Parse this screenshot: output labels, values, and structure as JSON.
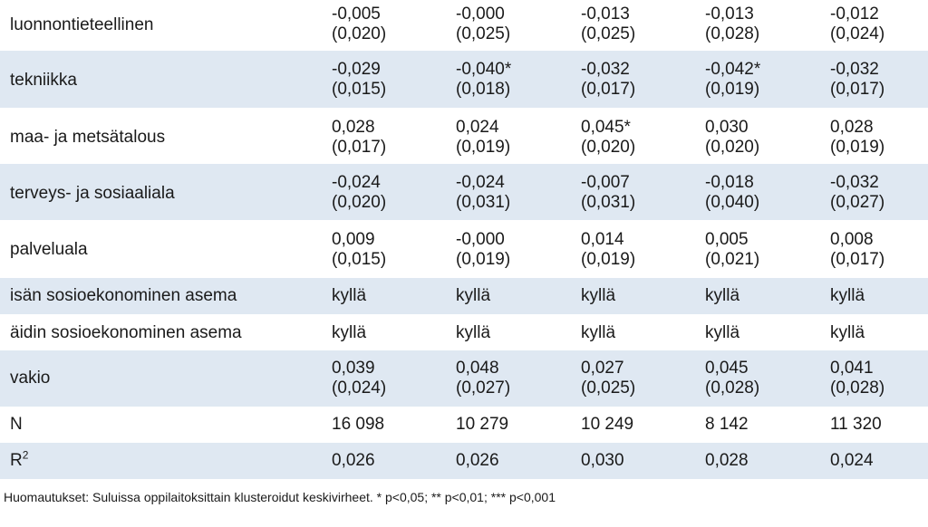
{
  "table": {
    "rows": [
      {
        "label": "luonnontieteellinen",
        "shaded": false,
        "type": "coef",
        "cells": [
          {
            "est": "-0,005",
            "se": "(0,020)"
          },
          {
            "est": "-0,000",
            "se": "(0,025)"
          },
          {
            "est": "-0,013",
            "se": "(0,025)"
          },
          {
            "est": "-0,013",
            "se": "(0,028)"
          },
          {
            "est": "-0,012",
            "se": "(0,024)"
          }
        ]
      },
      {
        "label": "tekniikka",
        "shaded": true,
        "type": "coef",
        "cells": [
          {
            "est": "-0,029",
            "se": "(0,015)"
          },
          {
            "est": "-0,040*",
            "se": "(0,018)"
          },
          {
            "est": "-0,032",
            "se": "(0,017)"
          },
          {
            "est": "-0,042*",
            "se": "(0,019)"
          },
          {
            "est": "-0,032",
            "se": "(0,017)"
          }
        ]
      },
      {
        "label": "maa- ja metsätalous",
        "shaded": false,
        "type": "coef",
        "cells": [
          {
            "est": "0,028",
            "se": "(0,017)"
          },
          {
            "est": "0,024",
            "se": "(0,019)"
          },
          {
            "est": "0,045*",
            "se": "(0,020)"
          },
          {
            "est": "0,030",
            "se": "(0,020)"
          },
          {
            "est": "0,028",
            "se": "(0,019)"
          }
        ]
      },
      {
        "label": "terveys- ja sosiaaliala",
        "shaded": true,
        "type": "coef",
        "cells": [
          {
            "est": "-0,024",
            "se": "(0,020)"
          },
          {
            "est": "-0,024",
            "se": "(0,031)"
          },
          {
            "est": "-0,007",
            "se": "(0,031)"
          },
          {
            "est": "-0,018",
            "se": "(0,040)"
          },
          {
            "est": "-0,032",
            "se": "(0,027)"
          }
        ]
      },
      {
        "label": "palveluala",
        "shaded": false,
        "type": "coef",
        "cells": [
          {
            "est": "0,009",
            "se": "(0,015)"
          },
          {
            "est": "-0,000",
            "se": "(0,019)"
          },
          {
            "est": "0,014",
            "se": "(0,019)"
          },
          {
            "est": "0,005",
            "se": "(0,021)"
          },
          {
            "est": "0,008",
            "se": "(0,017)"
          }
        ]
      },
      {
        "label": "isän sosioekonominen asema",
        "shaded": true,
        "type": "single",
        "cells": [
          "kyllä",
          "kyllä",
          "kyllä",
          "kyllä",
          "kyllä"
        ]
      },
      {
        "label": "äidin sosioekonominen asema",
        "shaded": false,
        "type": "single",
        "cells": [
          "kyllä",
          "kyllä",
          "kyllä",
          "kyllä",
          "kyllä"
        ]
      },
      {
        "label": "vakio",
        "shaded": true,
        "type": "coef",
        "cells": [
          {
            "est": "0,039",
            "se": "(0,024)"
          },
          {
            "est": "0,048",
            "se": "(0,027)"
          },
          {
            "est": "0,027",
            "se": "(0,025)"
          },
          {
            "est": "0,045",
            "se": "(0,028)"
          },
          {
            "est": "0,041",
            "se": "(0,028)"
          }
        ]
      },
      {
        "label": "N",
        "shaded": false,
        "type": "single",
        "cells": [
          "16 098",
          "10 279",
          "10 249",
          "8 142",
          "11 320"
        ]
      },
      {
        "label": "R",
        "label_sup": "2",
        "shaded": true,
        "type": "single",
        "cells": [
          "0,026",
          "0,026",
          "0,030",
          "0,028",
          "0,024"
        ]
      }
    ]
  },
  "note": "Huomautukset: Suluissa oppilaitoksittain klusteroidut keskivirheet. * p<0,05; ** p<0,01; *** p<0,001"
}
